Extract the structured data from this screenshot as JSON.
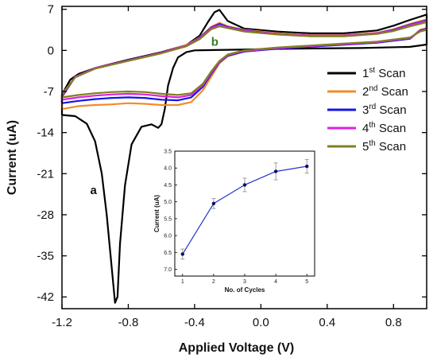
{
  "chart_data": [
    {
      "type": "line",
      "title": "",
      "xlabel": "Applied Voltage (V)",
      "ylabel": "Current (uA)",
      "xlim": [
        -1.2,
        1.0
      ],
      "ylim": [
        -44,
        7.5
      ],
      "x_ticks": [
        "-1.2",
        "-0.8",
        "-0.4",
        "0.0",
        "0.4",
        "0.8"
      ],
      "y_ticks": [
        "7",
        "0",
        "-7",
        "-14",
        "-21",
        "-28",
        "-35",
        "-42"
      ],
      "legend_position": "right",
      "annotations": [
        {
          "text": "a",
          "x": -1.03,
          "y": -24.5,
          "color": "#111111"
        },
        {
          "text": "b",
          "x": -0.3,
          "y": 0.8,
          "color": "#3a7d2a"
        }
      ],
      "series": [
        {
          "name": "1",
          "sup": "st",
          "suffix": " Scan",
          "color": "#000000",
          "points": [
            [
              -1.2,
              -11.0
            ],
            [
              -1.12,
              -11.2
            ],
            [
              -1.05,
              -12.5
            ],
            [
              -1.0,
              -15.5
            ],
            [
              -0.96,
              -21
            ],
            [
              -0.93,
              -28
            ],
            [
              -0.9,
              -37
            ],
            [
              -0.88,
              -43
            ],
            [
              -0.865,
              -42
            ],
            [
              -0.85,
              -33
            ],
            [
              -0.82,
              -23
            ],
            [
              -0.78,
              -16
            ],
            [
              -0.72,
              -13
            ],
            [
              -0.66,
              -12.6
            ],
            [
              -0.62,
              -13.2
            ],
            [
              -0.6,
              -12.6
            ],
            [
              -0.58,
              -10
            ],
            [
              -0.56,
              -6
            ],
            [
              -0.53,
              -3
            ],
            [
              -0.5,
              -1.2
            ],
            [
              -0.45,
              -0.3
            ],
            [
              -0.4,
              0.0
            ],
            [
              -0.2,
              0.1
            ],
            [
              0.2,
              0.3
            ],
            [
              0.6,
              0.4
            ],
            [
              0.9,
              0.6
            ],
            [
              1.0,
              1.0
            ],
            [
              1.0,
              6.1
            ],
            [
              0.9,
              5.2
            ],
            [
              0.8,
              4.2
            ],
            [
              0.7,
              3.4
            ],
            [
              0.5,
              2.9
            ],
            [
              0.3,
              2.9
            ],
            [
              0.1,
              3.2
            ],
            [
              -0.1,
              3.7
            ],
            [
              -0.2,
              5.0
            ],
            [
              -0.25,
              6.9
            ],
            [
              -0.28,
              6.5
            ],
            [
              -0.32,
              4.8
            ],
            [
              -0.37,
              2.5
            ],
            [
              -0.45,
              0.9
            ],
            [
              -0.6,
              -0.3
            ],
            [
              -0.8,
              -1.6
            ],
            [
              -1.0,
              -3.0
            ],
            [
              -1.1,
              -4.0
            ],
            [
              -1.15,
              -5.0
            ],
            [
              -1.2,
              -7.5
            ],
            [
              -1.2,
              -11.0
            ]
          ]
        },
        {
          "name": "2",
          "sup": "nd",
          "suffix": " Scan",
          "color": "#f28c28",
          "points": [
            [
              -1.2,
              -10.0
            ],
            [
              -1.1,
              -9.5
            ],
            [
              -1.0,
              -9.3
            ],
            [
              -0.9,
              -9.2
            ],
            [
              -0.8,
              -9.0
            ],
            [
              -0.7,
              -9.1
            ],
            [
              -0.6,
              -9.3
            ],
            [
              -0.5,
              -9.3
            ],
            [
              -0.42,
              -8.8
            ],
            [
              -0.35,
              -6.8
            ],
            [
              -0.3,
              -4.5
            ],
            [
              -0.25,
              -2.2
            ],
            [
              -0.2,
              -1.0
            ],
            [
              -0.1,
              -0.2
            ],
            [
              0.1,
              0.3
            ],
            [
              0.4,
              0.8
            ],
            [
              0.7,
              1.3
            ],
            [
              0.9,
              2.0
            ],
            [
              0.96,
              3.5
            ],
            [
              1.0,
              3.8
            ],
            [
              1.0,
              5.3
            ],
            [
              0.9,
              4.5
            ],
            [
              0.8,
              3.6
            ],
            [
              0.7,
              3.0
            ],
            [
              0.5,
              2.6
            ],
            [
              0.3,
              2.6
            ],
            [
              0.1,
              2.9
            ],
            [
              -0.1,
              3.5
            ],
            [
              -0.2,
              4.1
            ],
            [
              -0.25,
              4.7
            ],
            [
              -0.3,
              4.0
            ],
            [
              -0.37,
              2.2
            ],
            [
              -0.45,
              0.9
            ],
            [
              -0.6,
              -0.4
            ],
            [
              -0.8,
              -1.7
            ],
            [
              -1.0,
              -3.1
            ],
            [
              -1.12,
              -4.5
            ],
            [
              -1.2,
              -8.0
            ],
            [
              -1.2,
              -10.0
            ]
          ]
        },
        {
          "name": "3",
          "sup": "rd",
          "suffix": " Scan",
          "color": "#1515e6",
          "points": [
            [
              -1.2,
              -9.0
            ],
            [
              -1.1,
              -8.6
            ],
            [
              -1.0,
              -8.3
            ],
            [
              -0.9,
              -8.1
            ],
            [
              -0.8,
              -8.0
            ],
            [
              -0.7,
              -8.1
            ],
            [
              -0.6,
              -8.4
            ],
            [
              -0.5,
              -8.5
            ],
            [
              -0.42,
              -8.0
            ],
            [
              -0.35,
              -6.2
            ],
            [
              -0.3,
              -4.0
            ],
            [
              -0.25,
              -2.0
            ],
            [
              -0.2,
              -0.9
            ],
            [
              -0.1,
              -0.2
            ],
            [
              0.1,
              0.3
            ],
            [
              0.4,
              0.8
            ],
            [
              0.7,
              1.3
            ],
            [
              0.9,
              2.0
            ],
            [
              0.96,
              3.4
            ],
            [
              1.0,
              3.7
            ],
            [
              1.0,
              5.1
            ],
            [
              0.9,
              4.4
            ],
            [
              0.8,
              3.5
            ],
            [
              0.7,
              2.9
            ],
            [
              0.5,
              2.5
            ],
            [
              0.3,
              2.5
            ],
            [
              0.1,
              2.8
            ],
            [
              -0.1,
              3.4
            ],
            [
              -0.2,
              4.0
            ],
            [
              -0.25,
              4.5
            ],
            [
              -0.3,
              3.9
            ],
            [
              -0.37,
              2.1
            ],
            [
              -0.45,
              0.8
            ],
            [
              -0.6,
              -0.4
            ],
            [
              -0.8,
              -1.7
            ],
            [
              -1.0,
              -3.1
            ],
            [
              -1.12,
              -4.5
            ],
            [
              -1.2,
              -7.8
            ],
            [
              -1.2,
              -9.0
            ]
          ]
        },
        {
          "name": "4",
          "sup": "th",
          "suffix": " Scan",
          "color": "#e020e0",
          "points": [
            [
              -1.2,
              -8.4
            ],
            [
              -1.1,
              -8.0
            ],
            [
              -1.0,
              -7.7
            ],
            [
              -0.9,
              -7.5
            ],
            [
              -0.8,
              -7.4
            ],
            [
              -0.7,
              -7.5
            ],
            [
              -0.6,
              -7.8
            ],
            [
              -0.5,
              -8.0
            ],
            [
              -0.42,
              -7.6
            ],
            [
              -0.35,
              -5.9
            ],
            [
              -0.3,
              -3.8
            ],
            [
              -0.25,
              -1.9
            ],
            [
              -0.2,
              -0.8
            ],
            [
              -0.1,
              -0.1
            ],
            [
              0.1,
              0.4
            ],
            [
              0.4,
              0.9
            ],
            [
              0.7,
              1.4
            ],
            [
              0.9,
              2.1
            ],
            [
              0.96,
              3.3
            ],
            [
              1.0,
              3.6
            ],
            [
              1.0,
              5.0
            ],
            [
              0.9,
              4.3
            ],
            [
              0.8,
              3.4
            ],
            [
              0.7,
              2.9
            ],
            [
              0.5,
              2.5
            ],
            [
              0.3,
              2.5
            ],
            [
              0.1,
              2.8
            ],
            [
              -0.1,
              3.3
            ],
            [
              -0.2,
              3.9
            ],
            [
              -0.25,
              4.3
            ],
            [
              -0.3,
              3.8
            ],
            [
              -0.37,
              2.0
            ],
            [
              -0.45,
              0.8
            ],
            [
              -0.6,
              -0.4
            ],
            [
              -0.8,
              -1.7
            ],
            [
              -1.0,
              -3.0
            ],
            [
              -1.12,
              -4.5
            ],
            [
              -1.2,
              -7.6
            ],
            [
              -1.2,
              -8.4
            ]
          ]
        },
        {
          "name": "5",
          "sup": "th",
          "suffix": " Scan",
          "color": "#808020",
          "points": [
            [
              -1.2,
              -8.0
            ],
            [
              -1.1,
              -7.6
            ],
            [
              -1.0,
              -7.3
            ],
            [
              -0.9,
              -7.1
            ],
            [
              -0.8,
              -7.0
            ],
            [
              -0.7,
              -7.1
            ],
            [
              -0.6,
              -7.4
            ],
            [
              -0.5,
              -7.6
            ],
            [
              -0.42,
              -7.3
            ],
            [
              -0.35,
              -5.7
            ],
            [
              -0.3,
              -3.6
            ],
            [
              -0.25,
              -1.8
            ],
            [
              -0.2,
              -0.7
            ],
            [
              -0.1,
              0.0
            ],
            [
              0.1,
              0.5
            ],
            [
              0.4,
              1.0
            ],
            [
              0.7,
              1.5
            ],
            [
              0.9,
              2.2
            ],
            [
              0.96,
              3.2
            ],
            [
              1.0,
              3.5
            ],
            [
              1.0,
              4.8
            ],
            [
              0.9,
              4.1
            ],
            [
              0.8,
              3.3
            ],
            [
              0.7,
              2.8
            ],
            [
              0.5,
              2.4
            ],
            [
              0.3,
              2.4
            ],
            [
              0.1,
              2.7
            ],
            [
              -0.1,
              3.2
            ],
            [
              -0.2,
              3.8
            ],
            [
              -0.25,
              4.1
            ],
            [
              -0.3,
              3.6
            ],
            [
              -0.37,
              1.9
            ],
            [
              -0.45,
              0.7
            ],
            [
              -0.6,
              -0.5
            ],
            [
              -0.8,
              -1.8
            ],
            [
              -1.0,
              -3.1
            ],
            [
              -1.12,
              -4.6
            ],
            [
              -1.2,
              -7.4
            ],
            [
              -1.2,
              -8.0
            ]
          ]
        }
      ]
    },
    {
      "type": "line",
      "title": "",
      "xlabel": "No. of Cycles",
      "ylabel": "Current (uA)",
      "xlim": [
        0.75,
        5.25
      ],
      "ylim": [
        7.2,
        3.5
      ],
      "reversed_y": true,
      "x_ticks": [
        "1",
        "2",
        "3",
        "4",
        "5"
      ],
      "y_ticks": [
        "3.5",
        "4.0",
        "4.5",
        "5.0",
        "5.5",
        "6.0",
        "6.5",
        "7.0"
      ],
      "color": "#2233cc",
      "x": [
        1,
        2,
        3,
        4,
        5
      ],
      "values": [
        6.55,
        5.05,
        4.5,
        4.1,
        3.95
      ],
      "errors": [
        0.15,
        0.15,
        0.2,
        0.25,
        0.2
      ]
    }
  ]
}
